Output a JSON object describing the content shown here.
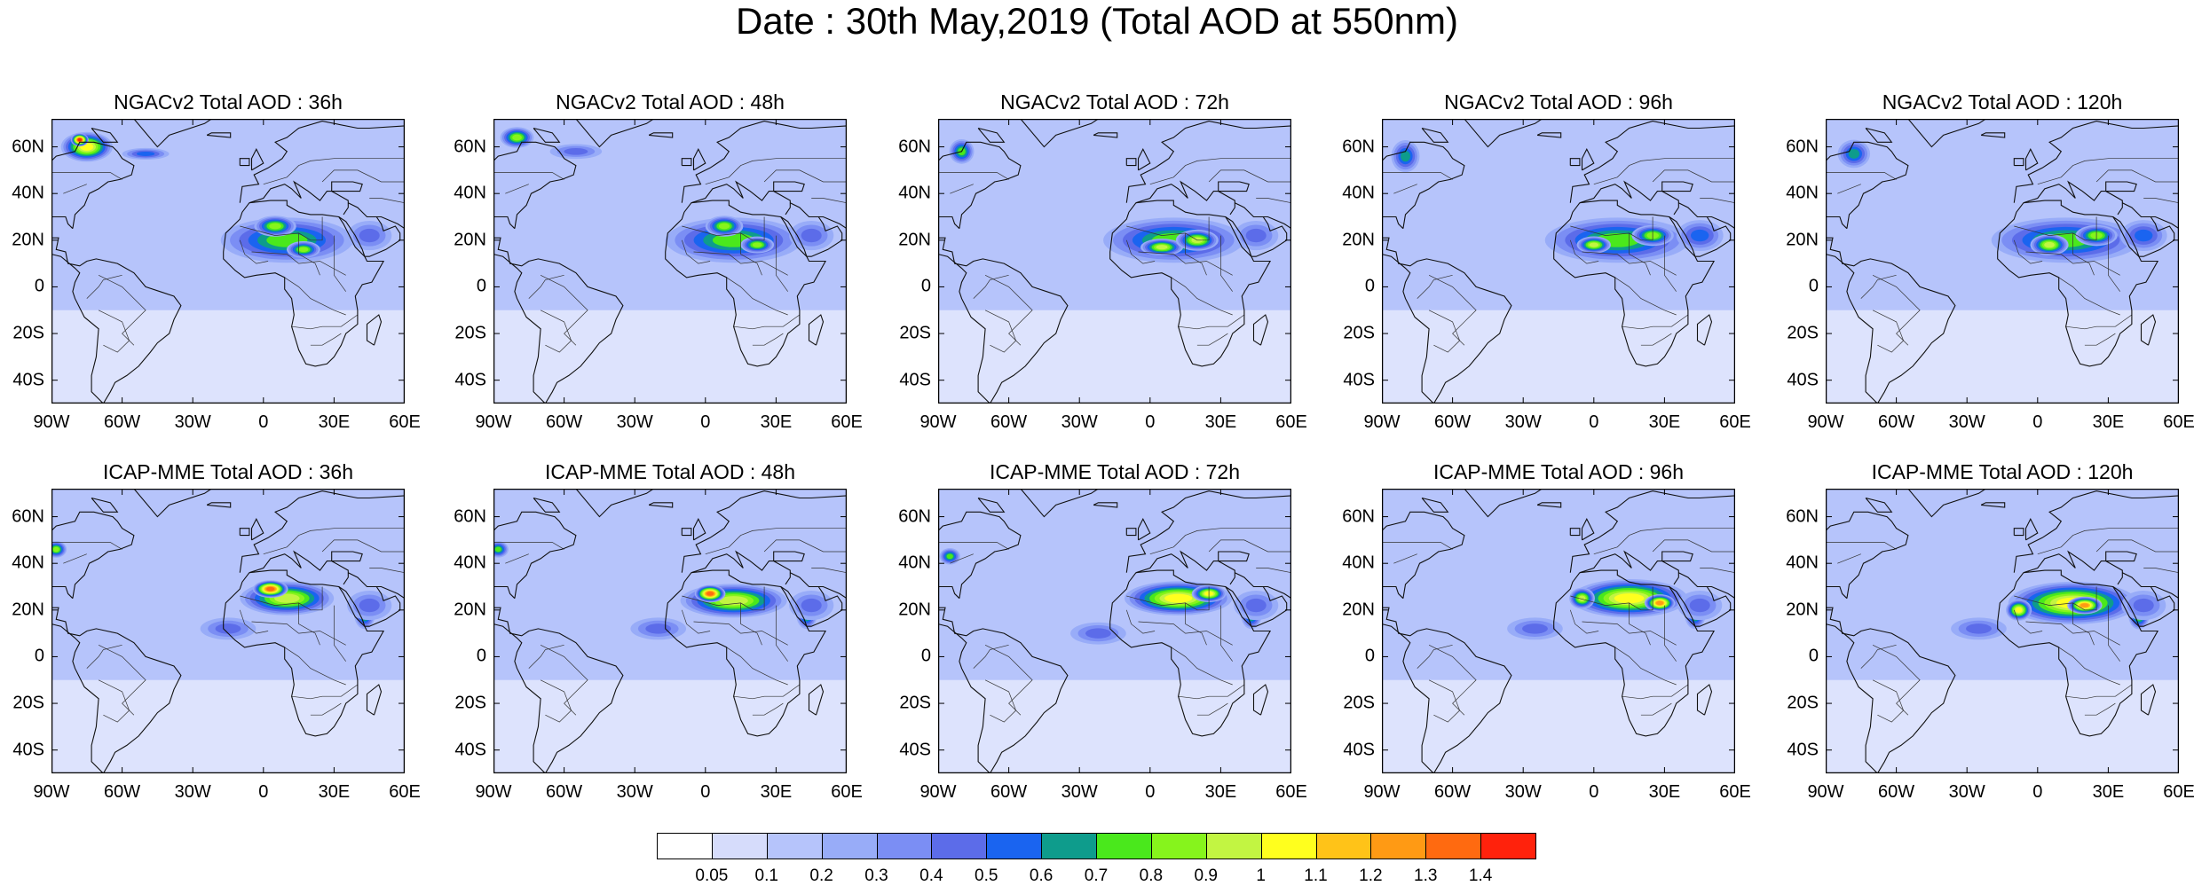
{
  "title": "Date : 30th May,2019 (Total AOD at 550nm)",
  "lat_labels": [
    "60N",
    "40N",
    "20N",
    "0",
    "20S",
    "40S"
  ],
  "lon_labels": [
    "90W",
    "60W",
    "30W",
    "0",
    "30E",
    "60E"
  ],
  "map_extent": {
    "lon": [
      -90,
      60
    ],
    "lat": [
      -50,
      72
    ]
  },
  "background_aod": 0.15,
  "panels": [
    {
      "title": "NGACv2 Total AOD : 36h",
      "plumes": [
        {
          "region": "Sahara",
          "lon": 10,
          "lat": 20,
          "rx": 32,
          "ry": 11,
          "peak": 0.7
        },
        {
          "region": "Sahara",
          "lon": 5,
          "lat": 26,
          "rx": 10,
          "ry": 5,
          "peak": 0.8
        },
        {
          "region": "Sahara",
          "lon": 17,
          "lat": 16,
          "rx": 8,
          "ry": 4,
          "peak": 0.8
        },
        {
          "region": "Arabia",
          "lon": 45,
          "lat": 22,
          "rx": 12,
          "ry": 8,
          "peak": 0.45
        },
        {
          "region": "Canada",
          "lon": -75,
          "lat": 60,
          "rx": 12,
          "ry": 7,
          "peak": 1.0
        },
        {
          "region": "Canada",
          "lon": -78,
          "lat": 63,
          "rx": 4,
          "ry": 3,
          "peak": 1.4
        },
        {
          "region": "North Atlantic",
          "lon": -50,
          "lat": 57,
          "rx": 12,
          "ry": 3,
          "peak": 0.55
        }
      ]
    },
    {
      "title": "NGACv2 Total AOD : 48h",
      "plumes": [
        {
          "region": "Sahara",
          "lon": 12,
          "lat": 20,
          "rx": 33,
          "ry": 11,
          "peak": 0.7
        },
        {
          "region": "Sahara",
          "lon": 8,
          "lat": 26,
          "rx": 9,
          "ry": 5,
          "peak": 0.8
        },
        {
          "region": "Sahara",
          "lon": 22,
          "lat": 18,
          "rx": 8,
          "ry": 4,
          "peak": 0.8
        },
        {
          "region": "Arabia",
          "lon": 45,
          "lat": 22,
          "rx": 12,
          "ry": 8,
          "peak": 0.45
        },
        {
          "region": "Canada",
          "lon": -80,
          "lat": 64,
          "rx": 8,
          "ry": 5,
          "peak": 0.8
        },
        {
          "region": "North Atlantic",
          "lon": -55,
          "lat": 58,
          "rx": 14,
          "ry": 4,
          "peak": 0.45
        }
      ]
    },
    {
      "title": "NGACv2 Total AOD : 72h",
      "plumes": [
        {
          "region": "Sahara",
          "lon": 10,
          "lat": 20,
          "rx": 34,
          "ry": 11,
          "peak": 0.75
        },
        {
          "region": "Sahara",
          "lon": 5,
          "lat": 17,
          "rx": 10,
          "ry": 4,
          "peak": 0.95
        },
        {
          "region": "Sahara",
          "lon": 20,
          "lat": 20,
          "rx": 10,
          "ry": 5,
          "peak": 0.9
        },
        {
          "region": "Arabia",
          "lon": 45,
          "lat": 22,
          "rx": 12,
          "ry": 8,
          "peak": 0.45
        },
        {
          "region": "Canada",
          "lon": -80,
          "lat": 58,
          "rx": 6,
          "ry": 6,
          "peak": 0.7
        }
      ]
    },
    {
      "title": "NGACv2 Total AOD : 96h",
      "plumes": [
        {
          "region": "Sahara",
          "lon": 10,
          "lat": 20,
          "rx": 35,
          "ry": 11,
          "peak": 0.7
        },
        {
          "region": "Sahara",
          "lon": 0,
          "lat": 18,
          "rx": 8,
          "ry": 4,
          "peak": 0.9
        },
        {
          "region": "Sahara",
          "lon": 25,
          "lat": 22,
          "rx": 10,
          "ry": 5,
          "peak": 0.85
        },
        {
          "region": "Arabia",
          "lon": 45,
          "lat": 22,
          "rx": 12,
          "ry": 8,
          "peak": 0.5
        },
        {
          "region": "Canada",
          "lon": -80,
          "lat": 56,
          "rx": 7,
          "ry": 8,
          "peak": 0.6
        }
      ]
    },
    {
      "title": "NGACv2 Total AOD : 120h",
      "plumes": [
        {
          "region": "Sahara",
          "lon": 12,
          "lat": 20,
          "rx": 36,
          "ry": 11,
          "peak": 0.75
        },
        {
          "region": "Sahara",
          "lon": 5,
          "lat": 18,
          "rx": 9,
          "ry": 5,
          "peak": 0.9
        },
        {
          "region": "Sahara",
          "lon": 25,
          "lat": 22,
          "rx": 10,
          "ry": 5,
          "peak": 0.85
        },
        {
          "region": "Arabia",
          "lon": 45,
          "lat": 22,
          "rx": 12,
          "ry": 8,
          "peak": 0.5
        },
        {
          "region": "Canada",
          "lon": -78,
          "lat": 57,
          "rx": 8,
          "ry": 7,
          "peak": 0.6
        }
      ]
    },
    {
      "title": "ICAP-MME Total AOD : 36h",
      "plumes": [
        {
          "region": "Sahara",
          "lon": 10,
          "lat": 25,
          "rx": 22,
          "ry": 8,
          "peak": 0.9
        },
        {
          "region": "Sahara",
          "lon": 3,
          "lat": 29,
          "rx": 8,
          "ry": 4,
          "peak": 1.3
        },
        {
          "region": "Red Sea",
          "lon": 43,
          "lat": 18,
          "rx": 5,
          "ry": 7,
          "peak": 0.75
        },
        {
          "region": "Arabia",
          "lon": 45,
          "lat": 22,
          "rx": 12,
          "ry": 8,
          "peak": 0.45
        },
        {
          "region": "Canada",
          "lon": -88,
          "lat": 46,
          "rx": 5,
          "ry": 4,
          "peak": 0.8
        },
        {
          "region": "West Africa",
          "lon": -15,
          "lat": 12,
          "rx": 15,
          "ry": 6,
          "peak": 0.4
        }
      ]
    },
    {
      "title": "ICAP-MME Total AOD : 48h",
      "plumes": [
        {
          "region": "Sahara",
          "lon": 12,
          "lat": 24,
          "rx": 25,
          "ry": 8,
          "peak": 0.9
        },
        {
          "region": "Sahara",
          "lon": 2,
          "lat": 27,
          "rx": 7,
          "ry": 4,
          "peak": 1.3
        },
        {
          "region": "Red Sea",
          "lon": 43,
          "lat": 18,
          "rx": 5,
          "ry": 7,
          "peak": 0.75
        },
        {
          "region": "Arabia",
          "lon": 45,
          "lat": 22,
          "rx": 12,
          "ry": 8,
          "peak": 0.45
        },
        {
          "region": "Canada",
          "lon": -88,
          "lat": 46,
          "rx": 5,
          "ry": 4,
          "peak": 0.7
        },
        {
          "region": "West Africa",
          "lon": -20,
          "lat": 12,
          "rx": 15,
          "ry": 6,
          "peak": 0.4
        }
      ]
    },
    {
      "title": "ICAP-MME Total AOD : 72h",
      "plumes": [
        {
          "region": "Sahara",
          "lon": 12,
          "lat": 25,
          "rx": 25,
          "ry": 8,
          "peak": 1.0
        },
        {
          "region": "Sahara",
          "lon": 25,
          "lat": 27,
          "rx": 8,
          "ry": 4,
          "peak": 1.05
        },
        {
          "region": "Red Sea",
          "lon": 43,
          "lat": 18,
          "rx": 5,
          "ry": 7,
          "peak": 0.7
        },
        {
          "region": "Arabia",
          "lon": 45,
          "lat": 22,
          "rx": 12,
          "ry": 8,
          "peak": 0.45
        },
        {
          "region": "Canada",
          "lon": -85,
          "lat": 43,
          "rx": 5,
          "ry": 4,
          "peak": 0.7
        },
        {
          "region": "West Africa",
          "lon": -22,
          "lat": 10,
          "rx": 15,
          "ry": 6,
          "peak": 0.4
        }
      ]
    },
    {
      "title": "ICAP-MME Total AOD : 96h",
      "plumes": [
        {
          "region": "Sahara",
          "lon": 15,
          "lat": 25,
          "rx": 27,
          "ry": 9,
          "peak": 1.0
        },
        {
          "region": "Sahara",
          "lon": 28,
          "lat": 23,
          "rx": 7,
          "ry": 4,
          "peak": 1.25
        },
        {
          "region": "Sahara",
          "lon": -5,
          "lat": 25,
          "rx": 6,
          "ry": 5,
          "peak": 0.95
        },
        {
          "region": "Red Sea",
          "lon": 43,
          "lat": 18,
          "rx": 5,
          "ry": 7,
          "peak": 0.75
        },
        {
          "region": "Arabia",
          "lon": 45,
          "lat": 22,
          "rx": 12,
          "ry": 8,
          "peak": 0.45
        },
        {
          "region": "West Africa",
          "lon": -25,
          "lat": 12,
          "rx": 15,
          "ry": 6,
          "peak": 0.4
        }
      ]
    },
    {
      "title": "ICAP-MME Total AOD : 120h",
      "plumes": [
        {
          "region": "Sahara",
          "lon": 15,
          "lat": 23,
          "rx": 30,
          "ry": 10,
          "peak": 1.0
        },
        {
          "region": "Sahara",
          "lon": 20,
          "lat": 22,
          "rx": 8,
          "ry": 4,
          "peak": 1.25
        },
        {
          "region": "Sahara",
          "lon": -8,
          "lat": 20,
          "rx": 6,
          "ry": 5,
          "peak": 1.05
        },
        {
          "region": "Red Sea",
          "lon": 43,
          "lat": 18,
          "rx": 5,
          "ry": 7,
          "peak": 0.8
        },
        {
          "region": "Arabia",
          "lon": 45,
          "lat": 22,
          "rx": 12,
          "ry": 8,
          "peak": 0.45
        },
        {
          "region": "West Africa",
          "lon": -25,
          "lat": 12,
          "rx": 15,
          "ry": 6,
          "peak": 0.4
        }
      ]
    }
  ],
  "colorbar": {
    "levels": [
      "0.05",
      "0.1",
      "0.2",
      "0.3",
      "0.4",
      "0.5",
      "0.6",
      "0.7",
      "0.8",
      "0.9",
      "1",
      "1.1",
      "1.2",
      "1.3",
      "1.4"
    ],
    "colors": [
      "#ffffff",
      "#d6dcfb",
      "#b6c4fb",
      "#98acf8",
      "#7b8ef4",
      "#5c6ce9",
      "#1a64f0",
      "#0e9c8c",
      "#4ae81c",
      "#86f41c",
      "#c2f542",
      "#ffff1e",
      "#ffc318",
      "#ff9a14",
      "#ff6a10",
      "#ff220c"
    ]
  }
}
